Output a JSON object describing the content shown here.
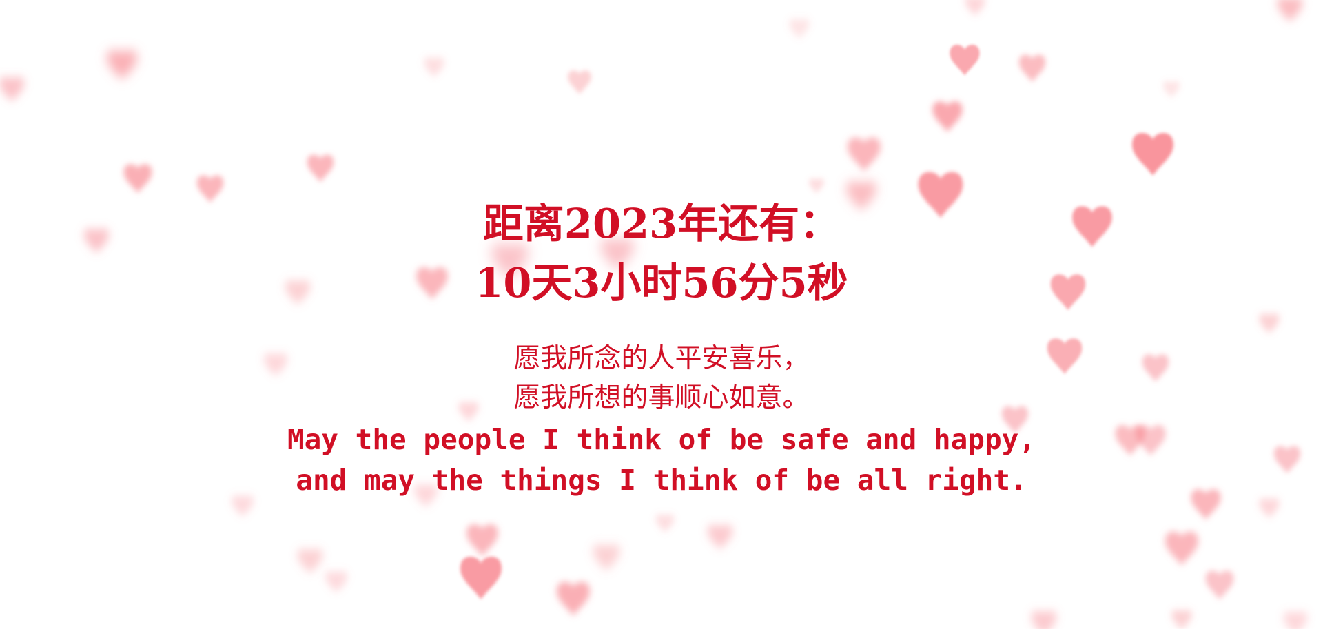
{
  "countdown": {
    "title": "距离2023年还有：",
    "time": "10天3小时56分5秒"
  },
  "wishes": {
    "zh_line1": "愿我所念的人平安喜乐，",
    "zh_line2": "愿我所想的事顺心如意。",
    "en_line1": "May the people I think of be safe and happy,",
    "en_line2": "and may the things I think of be all right."
  },
  "colors": {
    "text": "#d10f25",
    "heart": "#f77a84",
    "background": "#ffffff"
  },
  "decoration": {
    "icon": "heart-icon"
  }
}
